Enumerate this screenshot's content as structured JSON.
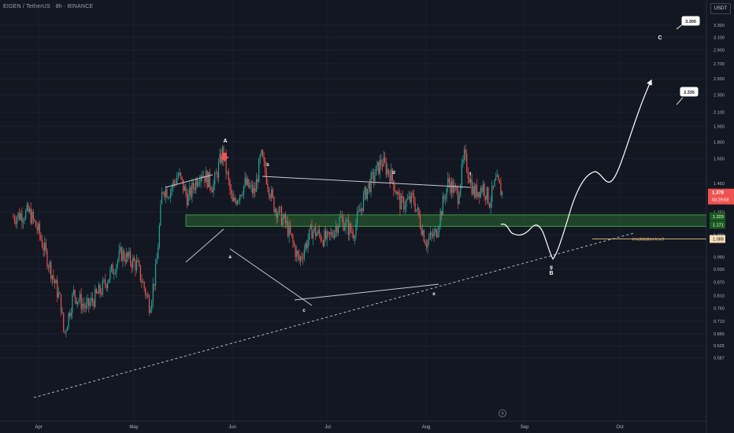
{
  "header": {
    "title": "EIGEN / TetherUS · 8h · BINANCE",
    "currency": "USDT"
  },
  "colors": {
    "background": "#131722",
    "up": "#26a69a",
    "down": "#ef5350",
    "zone": "#2e7d32",
    "text": "#d1d4dc",
    "axis_text": "#b2b5be"
  },
  "chart_data": {
    "type": "candlestick",
    "scale": "log",
    "title": "EIGEN / TetherUS · 8h · BINANCE",
    "currency": "USDT",
    "x_ticks": [
      "Apr",
      "May",
      "Jun",
      "Jul",
      "Aug",
      "Sep",
      "Oct"
    ],
    "y_ticks": [
      "3.300",
      "3.100",
      "2.900",
      "2.700",
      "2.500",
      "2.300",
      "2.100",
      "1.950",
      "1.800",
      "1.650",
      "1.450",
      "1.350",
      "1.250",
      "1.110",
      "0.990",
      "0.930",
      "0.870",
      "0.810",
      "0.760",
      "0.710",
      "0.665",
      "0.625",
      "0.587"
    ],
    "price_now": "1.378",
    "countdown": "03:29:58",
    "support_zone": {
      "top": "1.223",
      "bottom": "1.171"
    },
    "invalidation_level": {
      "label": "invalidation level",
      "value": "1.088"
    },
    "targets": [
      "3.300",
      "2.335"
    ],
    "wave_labels": [
      "A",
      "B",
      "C",
      "a",
      "b",
      "c",
      "d",
      "e",
      "f",
      "g"
    ],
    "price_path": [
      {
        "date": "Mar 24",
        "price": 1.22
      },
      {
        "date": "Mar 29",
        "price": 1.25
      },
      {
        "date": "Apr 1",
        "price": 1.13
      },
      {
        "date": "Apr 5",
        "price": 0.92
      },
      {
        "date": "Apr 8",
        "price": 0.78
      },
      {
        "date": "Apr 9",
        "price": 0.66
      },
      {
        "date": "Apr 12",
        "price": 0.82
      },
      {
        "date": "Apr 16",
        "price": 0.76
      },
      {
        "date": "Apr 21",
        "price": 0.84
      },
      {
        "date": "Apr 27",
        "price": 1.01
      },
      {
        "date": "May 2",
        "price": 0.95
      },
      {
        "date": "May 6",
        "price": 0.77
      },
      {
        "date": "May 8",
        "price": 0.93
      },
      {
        "date": "May 10",
        "price": 1.42
      },
      {
        "date": "May 12",
        "price": 1.39
      },
      {
        "date": "May 15",
        "price": 1.52
      },
      {
        "date": "May 18",
        "price": 1.34
      },
      {
        "date": "May 22",
        "price": 1.55
      },
      {
        "date": "May 26",
        "price": 1.43
      },
      {
        "date": "May 29",
        "price": 1.72
      },
      {
        "date": "Jun 1",
        "price": 1.3
      },
      {
        "date": "Jun 5",
        "price": 1.45
      },
      {
        "date": "Jun 8",
        "price": 1.38
      },
      {
        "date": "Jun 10",
        "price": 1.68
      },
      {
        "date": "Jun 14",
        "price": 1.3
      },
      {
        "date": "Jun 18",
        "price": 1.17
      },
      {
        "date": "Jun 22",
        "price": 0.97
      },
      {
        "date": "Jun 26",
        "price": 1.14
      },
      {
        "date": "Jul 1",
        "price": 1.08
      },
      {
        "date": "Jul 5",
        "price": 1.21
      },
      {
        "date": "Jul 9",
        "price": 1.12
      },
      {
        "date": "Jul 13",
        "price": 1.39
      },
      {
        "date": "Jul 18",
        "price": 1.63
      },
      {
        "date": "Jul 21",
        "price": 1.51
      },
      {
        "date": "Jul 24",
        "price": 1.3
      },
      {
        "date": "Jul 28",
        "price": 1.34
      },
      {
        "date": "Aug 1",
        "price": 1.07
      },
      {
        "date": "Aug 4",
        "price": 1.12
      },
      {
        "date": "Aug 8",
        "price": 1.47
      },
      {
        "date": "Aug 11",
        "price": 1.36
      },
      {
        "date": "Aug 13",
        "price": 1.67
      },
      {
        "date": "Aug 16",
        "price": 1.38
      },
      {
        "date": "Aug 19",
        "price": 1.43
      },
      {
        "date": "Aug 21",
        "price": 1.32
      },
      {
        "date": "Aug 23",
        "price": 1.47
      },
      {
        "date": "Aug 25",
        "price": 1.378
      }
    ]
  }
}
